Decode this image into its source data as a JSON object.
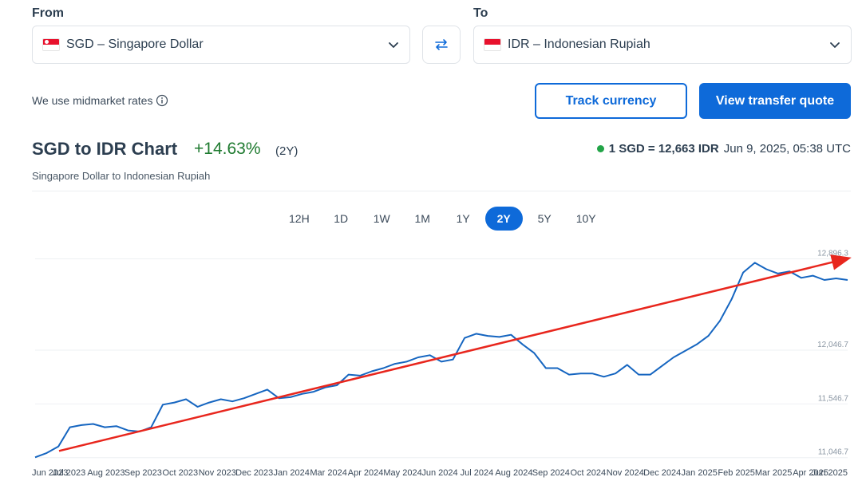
{
  "from": {
    "label": "From",
    "currency": "SGD – Singapore Dollar"
  },
  "to": {
    "label": "To",
    "currency": "IDR – Indonesian Rupiah"
  },
  "swap_icon": "swap-arrows-icon",
  "midmarket_text": "We use midmarket rates",
  "buttons": {
    "track": "Track currency",
    "quote": "View transfer quote"
  },
  "chart_header": {
    "title": "SGD to IDR Chart",
    "change": "+14.63%",
    "period": "(2Y)",
    "subtitle": "Singapore Dollar to Indonesian Rupiah",
    "rate": "1 SGD = 12,663 IDR",
    "timestamp": "Jun 9, 2025, 05:38 UTC"
  },
  "ranges": [
    {
      "label": "12H"
    },
    {
      "label": "1D"
    },
    {
      "label": "1W"
    },
    {
      "label": "1M"
    },
    {
      "label": "1Y"
    },
    {
      "label": "2Y",
      "active": true
    },
    {
      "label": "5Y"
    },
    {
      "label": "10Y"
    }
  ],
  "colors": {
    "accent": "#0e6ad9",
    "line": "#1565c0",
    "positive": "#1e7a2f",
    "trend": "#e8261d",
    "live_dot": "#22a447"
  },
  "chart_data": {
    "type": "line",
    "y_ticks": [
      "12,896.3",
      "12,046.7",
      "11,546.7",
      "11,046.7"
    ],
    "y_tick_values": [
      12896.3,
      12046.7,
      11546.7,
      11046.7
    ],
    "x_labels": [
      "Jun 2023",
      "Jul 2023",
      "Aug 2023",
      "Sep 2023",
      "Oct 2023",
      "Nov 2023",
      "Dec 2023",
      "Jan 2024",
      "Mar 2024",
      "Apr 2024",
      "May 2024",
      "Jun 2024",
      "Jul 2024",
      "Aug 2024",
      "Sep 2024",
      "Oct 2024",
      "Nov 2024",
      "Dec 2024",
      "Jan 2025",
      "Feb 2025",
      "Mar 2025",
      "Apr 2025",
      "Jun 2025"
    ],
    "series": [
      {
        "values": [
          11050,
          11090,
          11150,
          11330,
          11350,
          11360,
          11330,
          11340,
          11300,
          11290,
          11330,
          11540,
          11560,
          11590,
          11520,
          11560,
          11590,
          11570,
          11600,
          11640,
          11680,
          11600,
          11610,
          11640,
          11660,
          11700,
          11720,
          11820,
          11810,
          11850,
          11880,
          11920,
          11940,
          11980,
          12000,
          11940,
          11960,
          12160,
          12200,
          12180,
          12170,
          12190,
          12100,
          12020,
          11880,
          11880,
          11820,
          11830,
          11830,
          11800,
          11830,
          11910,
          11820,
          11820,
          11900,
          11980,
          12040,
          12100,
          12180,
          12320,
          12520,
          12770,
          12860,
          12800,
          12760,
          12780,
          12720,
          12740,
          12700,
          12715,
          12700
        ]
      }
    ],
    "trend": {
      "start": 11050,
      "end": 12900,
      "name": ""
    },
    "ylim": [
      11030,
      12930
    ]
  }
}
